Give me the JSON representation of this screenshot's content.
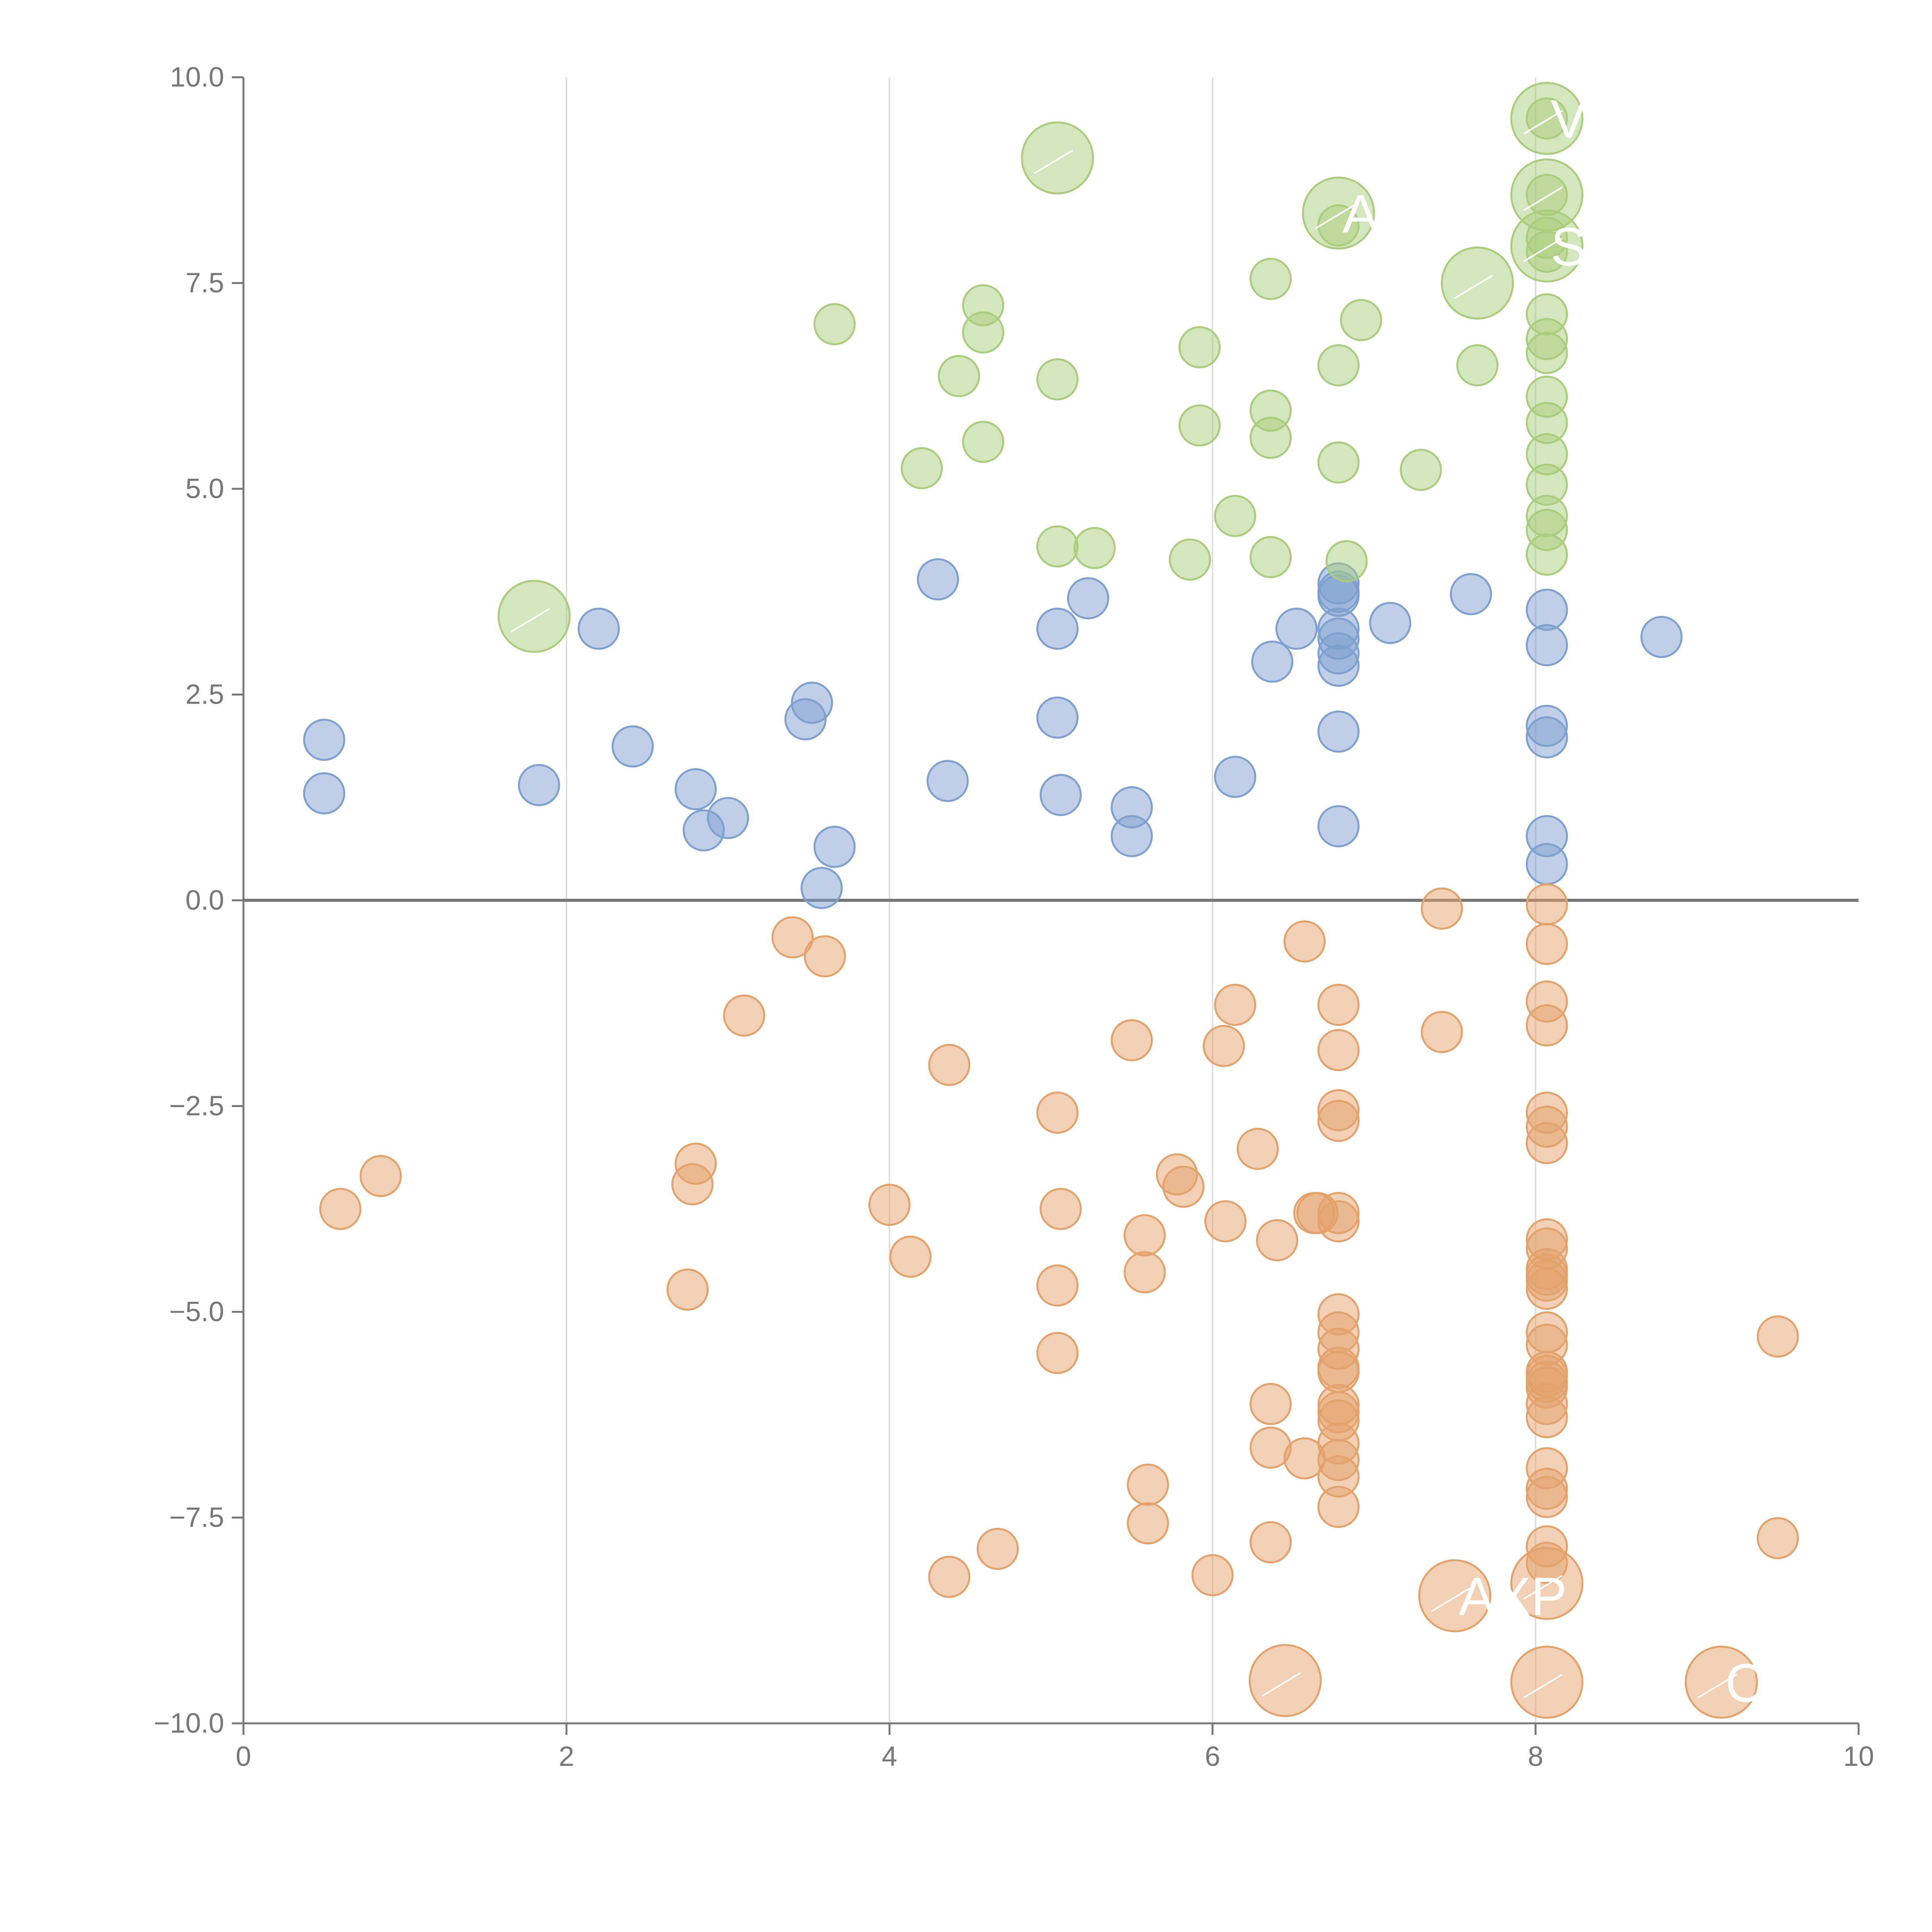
{
  "chart_data": {
    "type": "scatter",
    "title": "",
    "xlabel": "",
    "ylabel": "",
    "xlim": [
      0,
      10
    ],
    "ylim": [
      -10,
      10
    ],
    "x_ticks": [
      0,
      2,
      4,
      6,
      8,
      10
    ],
    "x_tick_labels": [
      "0",
      "2",
      "4",
      "6",
      "8",
      "10"
    ],
    "y_ticks": [
      10,
      7.5,
      5,
      2.5,
      0,
      -2.5,
      -5,
      -7.5,
      -10
    ],
    "y_tick_labels": [
      "10.0",
      "7.5",
      "5.0",
      "2.5",
      "0.0",
      "−2.5",
      "−5.0",
      "−7.5",
      "−10.0"
    ],
    "vertical_gridlines": [
      2,
      4,
      6,
      8
    ],
    "zero_line": 0,
    "legend": "none",
    "series": [
      {
        "color": "#7da0cf",
        "points": [
          {
            "x": 0.5,
            "y": 1.95
          },
          {
            "x": 0.5,
            "y": 1.3
          },
          {
            "x": 1.83,
            "y": 1.4
          },
          {
            "x": 2.2,
            "y": 3.3
          },
          {
            "x": 2.41,
            "y": 1.87
          },
          {
            "x": 2.8,
            "y": 1.35
          },
          {
            "x": 2.85,
            "y": 0.85
          },
          {
            "x": 3.0,
            "y": 1.0
          },
          {
            "x": 3.48,
            "y": 2.2
          },
          {
            "x": 3.52,
            "y": 2.4
          },
          {
            "x": 3.58,
            "y": 0.15
          },
          {
            "x": 3.66,
            "y": 0.65
          },
          {
            "x": 4.3,
            "y": 3.9
          },
          {
            "x": 4.36,
            "y": 1.45
          },
          {
            "x": 5.04,
            "y": 3.3
          },
          {
            "x": 5.04,
            "y": 2.22
          },
          {
            "x": 5.06,
            "y": 1.28
          },
          {
            "x": 5.23,
            "y": 3.67
          },
          {
            "x": 5.5,
            "y": 1.13
          },
          {
            "x": 5.5,
            "y": 0.78
          },
          {
            "x": 6.14,
            "y": 1.5
          },
          {
            "x": 6.37,
            "y": 2.9
          },
          {
            "x": 6.52,
            "y": 3.3
          },
          {
            "x": 6.78,
            "y": 3.85
          },
          {
            "x": 6.78,
            "y": 3.75
          },
          {
            "x": 6.78,
            "y": 3.7
          },
          {
            "x": 6.78,
            "y": 3.3
          },
          {
            "x": 6.78,
            "y": 3.18
          },
          {
            "x": 6.78,
            "y": 3.0
          },
          {
            "x": 6.78,
            "y": 2.85
          },
          {
            "x": 6.78,
            "y": 2.05
          },
          {
            "x": 6.78,
            "y": 0.9
          },
          {
            "x": 7.1,
            "y": 3.37
          },
          {
            "x": 7.6,
            "y": 3.72
          },
          {
            "x": 8.07,
            "y": 3.53
          },
          {
            "x": 8.07,
            "y": 3.1
          },
          {
            "x": 8.07,
            "y": 2.12
          },
          {
            "x": 8.07,
            "y": 1.98
          },
          {
            "x": 8.07,
            "y": 0.78
          },
          {
            "x": 8.07,
            "y": 0.44
          },
          {
            "x": 8.78,
            "y": 3.2
          }
        ]
      },
      {
        "color": "#a9cd7b",
        "points": [
          {
            "x": 3.66,
            "y": 7.0
          },
          {
            "x": 4.2,
            "y": 5.25
          },
          {
            "x": 4.43,
            "y": 6.37
          },
          {
            "x": 4.58,
            "y": 7.23
          },
          {
            "x": 4.58,
            "y": 6.9
          },
          {
            "x": 4.58,
            "y": 5.57
          },
          {
            "x": 5.04,
            "y": 6.33
          },
          {
            "x": 5.04,
            "y": 4.3
          },
          {
            "x": 5.27,
            "y": 4.28
          },
          {
            "x": 5.86,
            "y": 4.14
          },
          {
            "x": 5.92,
            "y": 6.72
          },
          {
            "x": 5.92,
            "y": 5.77
          },
          {
            "x": 6.14,
            "y": 4.67
          },
          {
            "x": 6.36,
            "y": 7.55
          },
          {
            "x": 6.36,
            "y": 5.95
          },
          {
            "x": 6.36,
            "y": 5.62
          },
          {
            "x": 6.36,
            "y": 4.17
          },
          {
            "x": 6.78,
            "y": 6.5
          },
          {
            "x": 6.78,
            "y": 5.32
          },
          {
            "x": 6.83,
            "y": 4.12
          },
          {
            "x": 6.92,
            "y": 7.05
          },
          {
            "x": 7.29,
            "y": 5.23
          },
          {
            "x": 7.64,
            "y": 6.5
          },
          {
            "x": 8.07,
            "y": 8.05
          },
          {
            "x": 8.07,
            "y": 7.88
          },
          {
            "x": 8.07,
            "y": 7.12
          },
          {
            "x": 8.07,
            "y": 6.82
          },
          {
            "x": 8.07,
            "y": 6.65
          },
          {
            "x": 8.07,
            "y": 6.12
          },
          {
            "x": 8.07,
            "y": 5.8
          },
          {
            "x": 8.07,
            "y": 5.42
          },
          {
            "x": 8.07,
            "y": 5.05
          },
          {
            "x": 8.07,
            "y": 4.67
          },
          {
            "x": 8.07,
            "y": 4.5
          },
          {
            "x": 8.07,
            "y": 4.2
          },
          {
            "x": 8.07,
            "y": 9.5
          },
          {
            "x": 8.07,
            "y": 8.57
          },
          {
            "x": 6.78,
            "y": 8.2
          }
        ]
      },
      {
        "color": "#e4a26b",
        "points": [
          {
            "x": 0.6,
            "y": -3.75
          },
          {
            "x": 0.85,
            "y": -3.35
          },
          {
            "x": 2.75,
            "y": -4.73
          },
          {
            "x": 2.78,
            "y": -3.45
          },
          {
            "x": 2.8,
            "y": -3.2
          },
          {
            "x": 3.1,
            "y": -1.4
          },
          {
            "x": 3.4,
            "y": -0.45
          },
          {
            "x": 3.6,
            "y": -0.68
          },
          {
            "x": 4.0,
            "y": -3.7
          },
          {
            "x": 4.13,
            "y": -4.33
          },
          {
            "x": 4.37,
            "y": -2.0
          },
          {
            "x": 4.37,
            "y": -8.22
          },
          {
            "x": 4.67,
            "y": -7.88
          },
          {
            "x": 5.04,
            "y": -2.58
          },
          {
            "x": 5.04,
            "y": -4.68
          },
          {
            "x": 5.04,
            "y": -5.5
          },
          {
            "x": 5.06,
            "y": -3.75
          },
          {
            "x": 5.5,
            "y": -1.7
          },
          {
            "x": 5.58,
            "y": -4.07
          },
          {
            "x": 5.58,
            "y": -4.52
          },
          {
            "x": 5.6,
            "y": -7.1
          },
          {
            "x": 5.6,
            "y": -7.57
          },
          {
            "x": 5.78,
            "y": -3.33
          },
          {
            "x": 5.82,
            "y": -3.48
          },
          {
            "x": 6.0,
            "y": -8.2
          },
          {
            "x": 6.07,
            "y": -1.77
          },
          {
            "x": 6.08,
            "y": -3.9
          },
          {
            "x": 6.14,
            "y": -1.27
          },
          {
            "x": 6.28,
            "y": -3.02
          },
          {
            "x": 6.36,
            "y": -6.12
          },
          {
            "x": 6.36,
            "y": -6.65
          },
          {
            "x": 6.36,
            "y": -7.8
          },
          {
            "x": 6.4,
            "y": -4.13
          },
          {
            "x": 6.57,
            "y": -0.5
          },
          {
            "x": 6.57,
            "y": -6.78
          },
          {
            "x": 6.63,
            "y": -3.8
          },
          {
            "x": 6.65,
            "y": -3.8
          },
          {
            "x": 6.78,
            "y": -1.27
          },
          {
            "x": 6.78,
            "y": -1.82
          },
          {
            "x": 6.78,
            "y": -2.55
          },
          {
            "x": 6.78,
            "y": -2.68
          },
          {
            "x": 6.78,
            "y": -3.8
          },
          {
            "x": 6.78,
            "y": -3.9
          },
          {
            "x": 6.78,
            "y": -5.03
          },
          {
            "x": 6.78,
            "y": -5.25
          },
          {
            "x": 6.78,
            "y": -5.45
          },
          {
            "x": 6.78,
            "y": -5.68
          },
          {
            "x": 6.78,
            "y": -5.73
          },
          {
            "x": 6.78,
            "y": -6.13
          },
          {
            "x": 6.78,
            "y": -6.22
          },
          {
            "x": 6.78,
            "y": -6.32
          },
          {
            "x": 6.78,
            "y": -6.6
          },
          {
            "x": 6.78,
            "y": -6.8
          },
          {
            "x": 6.78,
            "y": -7.0
          },
          {
            "x": 6.78,
            "y": -7.37
          },
          {
            "x": 7.42,
            "y": -0.1
          },
          {
            "x": 7.42,
            "y": -1.6
          },
          {
            "x": 8.07,
            "y": -0.05
          },
          {
            "x": 8.07,
            "y": -0.53
          },
          {
            "x": 8.07,
            "y": -1.23
          },
          {
            "x": 8.07,
            "y": -1.52
          },
          {
            "x": 8.07,
            "y": -2.58
          },
          {
            "x": 8.07,
            "y": -2.75
          },
          {
            "x": 8.07,
            "y": -2.95
          },
          {
            "x": 8.07,
            "y": -4.12
          },
          {
            "x": 8.07,
            "y": -4.23
          },
          {
            "x": 8.07,
            "y": -4.48
          },
          {
            "x": 8.07,
            "y": -4.55
          },
          {
            "x": 8.07,
            "y": -4.62
          },
          {
            "x": 8.07,
            "y": -4.72
          },
          {
            "x": 8.07,
            "y": -5.25
          },
          {
            "x": 8.07,
            "y": -5.4
          },
          {
            "x": 8.07,
            "y": -5.73
          },
          {
            "x": 8.07,
            "y": -5.78
          },
          {
            "x": 8.07,
            "y": -5.85
          },
          {
            "x": 8.07,
            "y": -5.92
          },
          {
            "x": 8.07,
            "y": -6.12
          },
          {
            "x": 8.07,
            "y": -6.28
          },
          {
            "x": 8.07,
            "y": -6.9
          },
          {
            "x": 8.07,
            "y": -7.15
          },
          {
            "x": 8.07,
            "y": -7.25
          },
          {
            "x": 8.07,
            "y": -7.85
          },
          {
            "x": 8.07,
            "y": -8.05
          },
          {
            "x": 9.5,
            "y": -5.3
          },
          {
            "x": 9.5,
            "y": -7.75
          }
        ]
      }
    ],
    "highlight_bubbles": [
      {
        "x": 1.8,
        "y": 3.45,
        "series": 1,
        "label": ""
      },
      {
        "x": 5.04,
        "y": 9.02,
        "series": 1,
        "label": ""
      },
      {
        "x": 6.78,
        "y": 8.35,
        "series": 1,
        "label": "AUL"
      },
      {
        "x": 7.64,
        "y": 7.5,
        "series": 1,
        "label": ""
      },
      {
        "x": 8.07,
        "y": 9.5,
        "series": 1,
        "label": "V"
      },
      {
        "x": 8.07,
        "y": 8.57,
        "series": 1,
        "label": ""
      },
      {
        "x": 8.07,
        "y": 7.95,
        "series": 1,
        "label": "S"
      },
      {
        "x": 6.45,
        "y": -9.48,
        "series": 2,
        "label": ""
      },
      {
        "x": 7.5,
        "y": -8.45,
        "series": 2,
        "label": "AXP"
      },
      {
        "x": 8.07,
        "y": -8.3,
        "series": 2,
        "label": ""
      },
      {
        "x": 8.07,
        "y": -9.5,
        "series": 2,
        "label": ""
      },
      {
        "x": 9.15,
        "y": -9.5,
        "series": 2,
        "label": "CE"
      }
    ]
  }
}
